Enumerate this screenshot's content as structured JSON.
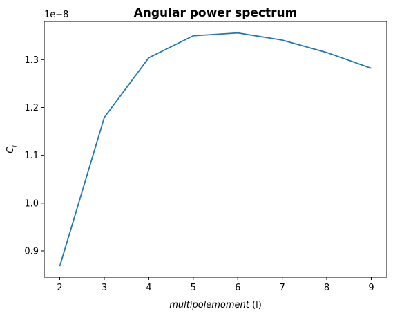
{
  "chart_data": {
    "type": "line",
    "title": "Angular power spectrum",
    "xlabel_italic": "multipolemoment",
    "xlabel_rest": " (l)",
    "ylabel_symbol": "C",
    "ylabel_subscript": "l",
    "y_offset_text": "1e−8",
    "x": [
      2,
      3,
      4,
      5,
      6,
      7,
      8,
      9
    ],
    "y": [
      0.868,
      1.179,
      1.304,
      1.35,
      1.356,
      1.341,
      1.315,
      1.282
    ],
    "y_scale_note": "values shown in units of 1e-8",
    "xlim": [
      1.65,
      9.35
    ],
    "ylim": [
      0.845,
      1.38
    ],
    "x_ticks": [
      "2",
      "3",
      "4",
      "5",
      "6",
      "7",
      "8",
      "9"
    ],
    "y_ticks": [
      "0.9",
      "1.0",
      "1.1",
      "1.2",
      "1.3"
    ],
    "grid": false,
    "line_color": "#1f77b4"
  }
}
